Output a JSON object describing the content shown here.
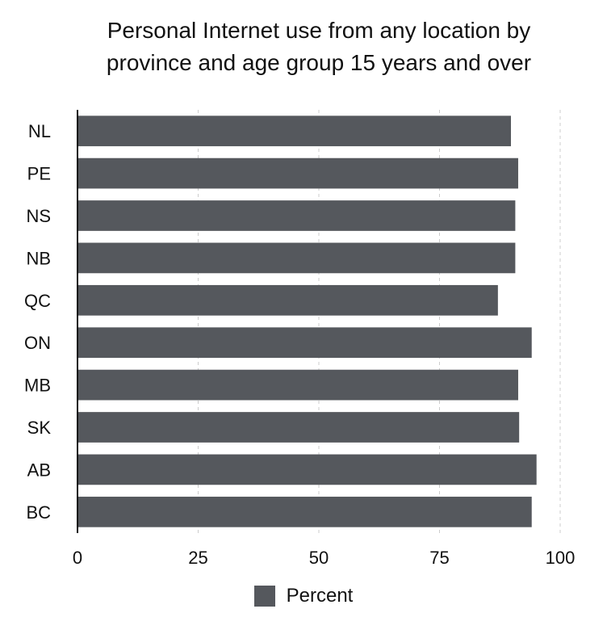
{
  "chart_data": {
    "type": "bar",
    "orientation": "horizontal",
    "title": "Personal Internet use from any location by province and age group 15 years and over",
    "xlabel": "",
    "ylabel": "",
    "categories": [
      "NL",
      "PE",
      "NS",
      "NB",
      "QC",
      "ON",
      "MB",
      "SK",
      "AB",
      "BC"
    ],
    "series": [
      {
        "name": "Percent",
        "color": "#55585d",
        "values": [
          89.8,
          91.3,
          90.7,
          90.7,
          87.1,
          94.1,
          91.3,
          91.5,
          95.1,
          94.1
        ]
      }
    ],
    "xlim": [
      0,
      100
    ],
    "xticks": [
      "0",
      "25",
      "50",
      "75",
      "100"
    ],
    "grid": "vertical dashed",
    "legend_position": "bottom"
  }
}
